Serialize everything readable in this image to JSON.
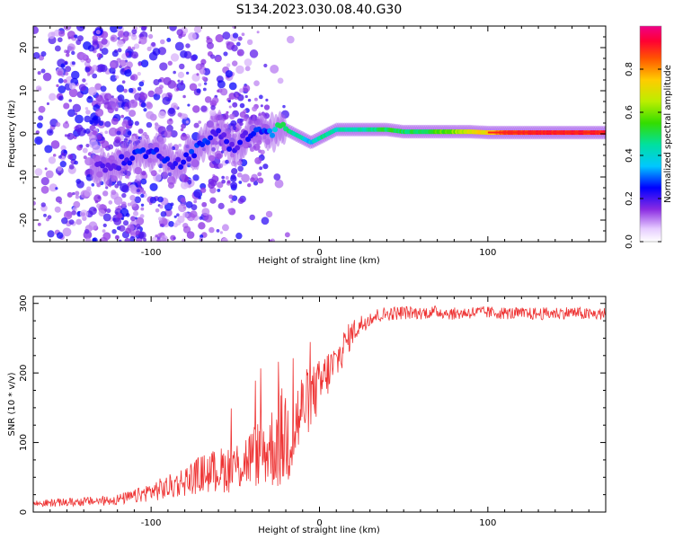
{
  "title": "S134.2023.030.08.40.G30",
  "chart_data": [
    {
      "type": "heatmap",
      "xlabel": "Height of straight line (km)",
      "ylabel": "Frequency (Hz)",
      "xlim": [
        -170,
        170
      ],
      "ylim": [
        -25,
        25
      ],
      "xticks": [
        -100,
        0,
        100
      ],
      "yticks": [
        -20,
        -10,
        0,
        10,
        20
      ],
      "ridge": {
        "x": [
          -130,
          -125,
          -120,
          -115,
          -110,
          -105,
          -100,
          -95,
          -90,
          -85,
          -80,
          -75,
          -70,
          -65,
          -60,
          -55,
          -50,
          -45,
          -40,
          -35,
          -30,
          -25,
          -22,
          -20,
          -15,
          -10,
          -5,
          0,
          5,
          10,
          20,
          30,
          40,
          50,
          60,
          70,
          80,
          90,
          100,
          110,
          120,
          130,
          140,
          150,
          160,
          170
        ],
        "y": [
          -8,
          -8,
          -7,
          -6,
          -5,
          -4,
          -5,
          -4,
          -6,
          -7,
          -6,
          -4,
          -3,
          -1,
          1,
          -2,
          -3,
          -1,
          0,
          1,
          0,
          1,
          2,
          1,
          0,
          -1,
          -2,
          -1,
          0,
          1,
          1,
          1,
          1,
          0.5,
          0.5,
          0.5,
          0.5,
          0.5,
          0.3,
          0.3,
          0.3,
          0.3,
          0.3,
          0.3,
          0.3,
          0.3
        ],
        "amplitude": [
          0.18,
          0.2,
          0.2,
          0.22,
          0.25,
          0.25,
          0.24,
          0.24,
          0.22,
          0.2,
          0.22,
          0.25,
          0.25,
          0.24,
          0.22,
          0.2,
          0.2,
          0.22,
          0.24,
          0.25,
          0.28,
          0.45,
          0.55,
          0.5,
          0.45,
          0.4,
          0.35,
          0.45,
          0.45,
          0.42,
          0.42,
          0.45,
          0.5,
          0.5,
          0.5,
          0.55,
          0.6,
          0.7,
          0.75,
          0.85,
          0.88,
          0.9,
          0.9,
          0.9,
          0.9,
          0.9
        ]
      },
      "colorbar": {
        "label": "Normalized spectral amplitude",
        "ticks": [
          0.0,
          0.2,
          0.4,
          0.6,
          0.8
        ],
        "range": [
          0,
          1
        ]
      }
    },
    {
      "type": "line",
      "xlabel": "Height of straight line (km)",
      "ylabel": "SNR (10 * v/v)",
      "xlim": [
        -170,
        170
      ],
      "ylim": [
        0,
        310
      ],
      "xticks": [
        -100,
        0,
        100
      ],
      "yticks": [
        0,
        100,
        200,
        300
      ],
      "series": [
        {
          "color": "#ee3333",
          "x": [
            -170,
            -150,
            -130,
            -120,
            -110,
            -100,
            -90,
            -80,
            -70,
            -60,
            -50,
            -40,
            -30,
            -25,
            -20,
            -15,
            -10,
            -5,
            0,
            5,
            10,
            15,
            20,
            30,
            40,
            50,
            60,
            70,
            80,
            90,
            100,
            110,
            120,
            130,
            140,
            150,
            160,
            170
          ],
          "y": [
            12,
            14,
            16,
            18,
            22,
            30,
            35,
            45,
            55,
            60,
            65,
            80,
            90,
            100,
            110,
            120,
            150,
            165,
            180,
            200,
            215,
            240,
            260,
            280,
            285,
            287,
            286,
            288,
            285,
            287,
            287,
            286,
            285,
            285,
            286,
            287,
            284,
            285
          ],
          "spread": [
            5,
            6,
            7,
            8,
            10,
            14,
            18,
            22,
            28,
            32,
            38,
            45,
            55,
            70,
            80,
            70,
            55,
            45,
            40,
            35,
            30,
            25,
            18,
            12,
            10,
            10,
            9,
            9,
            9,
            9,
            9,
            9,
            9,
            9,
            9,
            9,
            9,
            9
          ]
        }
      ]
    }
  ]
}
